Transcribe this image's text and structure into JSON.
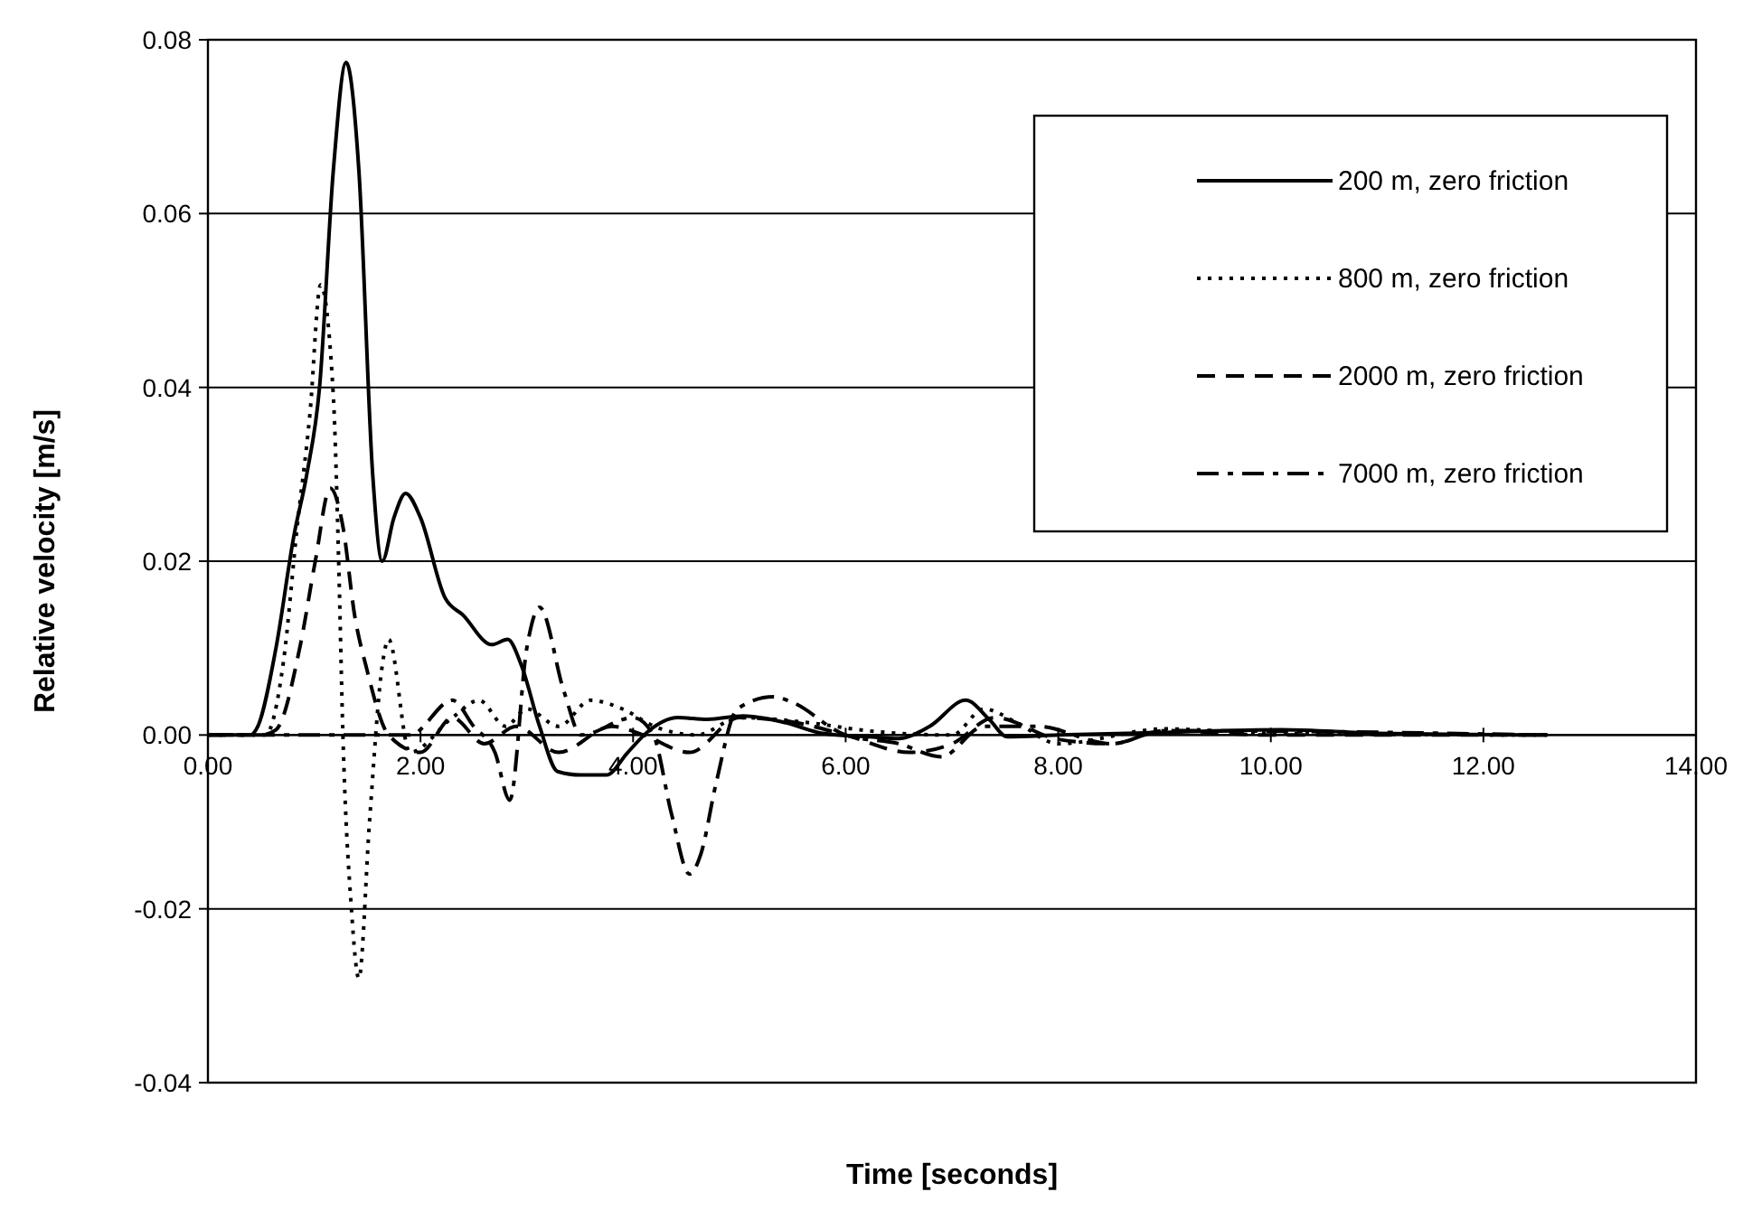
{
  "chart_data": {
    "type": "line",
    "xlabel": "Time [seconds]",
    "ylabel": "Relative velocity [m/s]",
    "xlim": [
      0,
      14
    ],
    "xticks": [
      {
        "value": 0,
        "label": "0.00"
      },
      {
        "value": 2,
        "label": "2.00"
      },
      {
        "value": 4,
        "label": "4.00"
      },
      {
        "value": 6,
        "label": "6.00"
      },
      {
        "value": 8,
        "label": "8.00"
      },
      {
        "value": 10,
        "label": "10.00"
      },
      {
        "value": 12,
        "label": "12.00"
      },
      {
        "value": 14,
        "label": "14.00"
      }
    ],
    "ylim": [
      -0.04,
      0.08
    ],
    "yticks": [
      {
        "value": -0.04,
        "label": "-0.04"
      },
      {
        "value": -0.02,
        "label": "-0.02"
      },
      {
        "value": 0,
        "label": "0.00"
      },
      {
        "value": 0.02,
        "label": "0.02"
      },
      {
        "value": 0.04,
        "label": "0.04"
      },
      {
        "value": 0.06,
        "label": "0.06"
      },
      {
        "value": 0.08,
        "label": "0.08"
      }
    ],
    "grid": "y",
    "legend": "top right",
    "marker": "none",
    "series": [
      {
        "name": "200 m, zero friction",
        "color": "#000000",
        "line_style": "solid",
        "x": [
          0,
          0.4,
          0.47,
          0.64,
          0.81,
          0.93,
          1.05,
          1.18,
          1.3,
          1.42,
          1.55,
          1.64,
          1.75,
          1.86,
          2.0,
          2.23,
          2.4,
          2.67,
          2.82,
          2.95,
          3.12,
          3.29,
          3.51,
          3.75,
          3.95,
          4.14,
          4.42,
          4.7,
          5.04,
          5.44,
          5.78,
          6.22,
          6.5,
          6.79,
          7.13,
          7.35,
          7.52,
          8.0,
          9.0,
          10.1,
          11.0,
          12.6
        ],
        "values": [
          0,
          0,
          0.001,
          0.01,
          0.023,
          0.03,
          0.04,
          0.065,
          0.0774,
          0.065,
          0.03,
          0.02,
          0.025,
          0.0278,
          0.025,
          0.0158,
          0.0138,
          0.0104,
          0.011,
          0.008,
          0.001,
          -0.0042,
          -0.0046,
          -0.0046,
          -0.002,
          0.0004,
          0.002,
          0.0018,
          0.0022,
          0.0014,
          0.0002,
          -0.0002,
          -0.0004,
          0.001,
          0.004,
          0.0018,
          -0.0002,
          0,
          0.0003,
          0.0006,
          0.0002,
          0
        ]
      },
      {
        "name": "800 m, zero friction",
        "color": "#000000",
        "line_style": "dotted",
        "x": [
          0,
          0.54,
          0.71,
          0.84,
          0.96,
          1.06,
          1.18,
          1.23,
          1.27,
          1.35,
          1.42,
          1.52,
          1.64,
          1.7,
          1.9,
          2.3,
          2.55,
          2.8,
          3.0,
          3.3,
          3.6,
          3.9,
          4.2,
          4.6,
          5.0,
          5.6,
          6.2,
          7.0,
          7.3,
          7.6,
          8.0,
          9.0,
          10.0,
          12.6
        ],
        "values": [
          0,
          0,
          0.0084,
          0.024,
          0.037,
          0.0518,
          0.039,
          0.02,
          0,
          -0.02,
          -0.028,
          -0.01,
          0.008,
          0.011,
          -0.002,
          0.002,
          0.004,
          0.001,
          0.003,
          0.001,
          0.004,
          0.003,
          0.001,
          0,
          0.002,
          0.0015,
          0.0005,
          0,
          0.003,
          0.0015,
          -0.001,
          0.0007,
          0.0002,
          0
        ]
      },
      {
        "name": "2000 m, zero friction",
        "color": "#000000",
        "line_style": "dashed",
        "x": [
          0,
          0.5,
          0.64,
          0.87,
          1.01,
          1.15,
          1.27,
          1.38,
          1.49,
          1.7,
          2.0,
          2.3,
          2.6,
          2.9,
          3.3,
          3.8,
          4.1,
          4.53,
          5.0,
          5.5,
          6.0,
          6.6,
          7.0,
          7.4,
          8.0,
          8.5,
          9.0,
          10.0,
          12.6
        ],
        "values": [
          0,
          0,
          0.0006,
          0.0104,
          0.02,
          0.0284,
          0.024,
          0.0138,
          0.0078,
          0,
          -0.002,
          0.002,
          -0.001,
          0.001,
          -0.002,
          0.001,
          0,
          -0.002,
          0.002,
          0.0015,
          0,
          -0.002,
          -0.001,
          0.002,
          -0.0005,
          -0.001,
          0.0005,
          0,
          0
        ]
      },
      {
        "name": "7000 m, zero friction",
        "color": "#000000",
        "line_style": "dashdot",
        "x": [
          0,
          1.7,
          1.9,
          2.3,
          2.5,
          2.7,
          2.84,
          3.0,
          3.12,
          3.35,
          3.51,
          4.0,
          4.19,
          4.36,
          4.53,
          4.64,
          4.78,
          4.98,
          5.32,
          5.49,
          6.0,
          6.5,
          6.9,
          7.3,
          7.8,
          8.5,
          9.0,
          12.6
        ],
        "values": [
          0,
          0,
          0,
          0.004,
          0.001,
          -0.002,
          -0.0075,
          0.01,
          0.0147,
          0.005,
          0,
          0.002,
          0,
          -0.009,
          -0.016,
          -0.0136,
          -0.0056,
          0.003,
          0.0044,
          0.0038,
          0,
          -0.001,
          -0.0025,
          0.001,
          0.001,
          -0.001,
          0.0005,
          0
        ]
      }
    ]
  }
}
